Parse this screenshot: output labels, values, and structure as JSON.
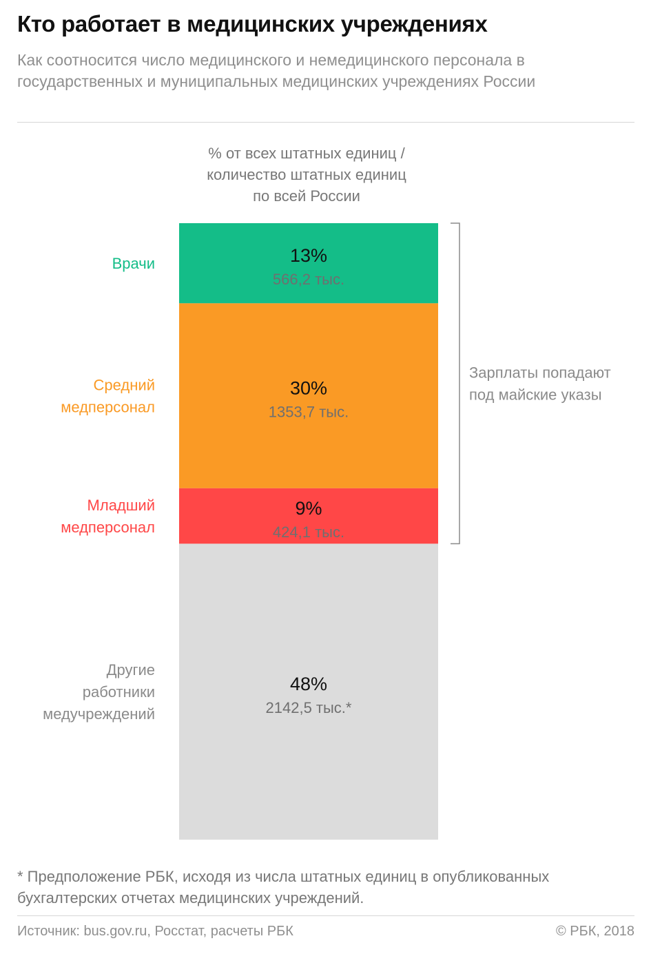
{
  "header": {
    "title": "Кто работает в медицинских учреждениях",
    "subtitle": "Как соотносится число медицинского и немедицинского персонала в государственных и муниципальных медицинских учреждениях России"
  },
  "chart_data": {
    "type": "bar",
    "orientation": "stacked-vertical-single",
    "caption_lines": [
      "% от всех штатных единиц /",
      "количество штатных единиц",
      "по всей России"
    ],
    "unit_count": "тыс.",
    "segments": [
      {
        "category_lines": [
          "Врачи"
        ],
        "percent": 13,
        "percent_label": "13%",
        "count": 566.2,
        "count_label": "566,2 тыс.",
        "color": "#14bd88"
      },
      {
        "category_lines": [
          "Средний",
          "медперсонал"
        ],
        "percent": 30,
        "percent_label": "30%",
        "count": 1353.7,
        "count_label": "1353,7 тыс.",
        "color": "#fa9a25"
      },
      {
        "category_lines": [
          "Младший",
          "медперсонал"
        ],
        "percent": 9,
        "percent_label": "9%",
        "count": 424.1,
        "count_label": "424,1 тыс.",
        "color": "#ff4747"
      },
      {
        "category_lines": [
          "Другие",
          "работники",
          "медучреждений"
        ],
        "percent": 48,
        "percent_label": "48%",
        "count": 2142.5,
        "count_label": "2142,5 тыс.*",
        "color": "#dcdcdc"
      }
    ],
    "bracket": {
      "spans_segments": [
        0,
        2
      ],
      "label_lines": [
        "Зарплаты попадают",
        "под майские указы"
      ]
    },
    "label_colors": [
      "#14bd88",
      "#fa9a25",
      "#ff4747",
      "#8a8a8a"
    ]
  },
  "footnote": "* Предположение РБК, исходя из числа штатных единиц в опубликованных бухгалтерских отчетах медицинских учреждений.",
  "footer": {
    "source": "Источник: bus.gov.ru, Росстат, расчеты РБК",
    "copyright": "© РБК, 2018"
  }
}
